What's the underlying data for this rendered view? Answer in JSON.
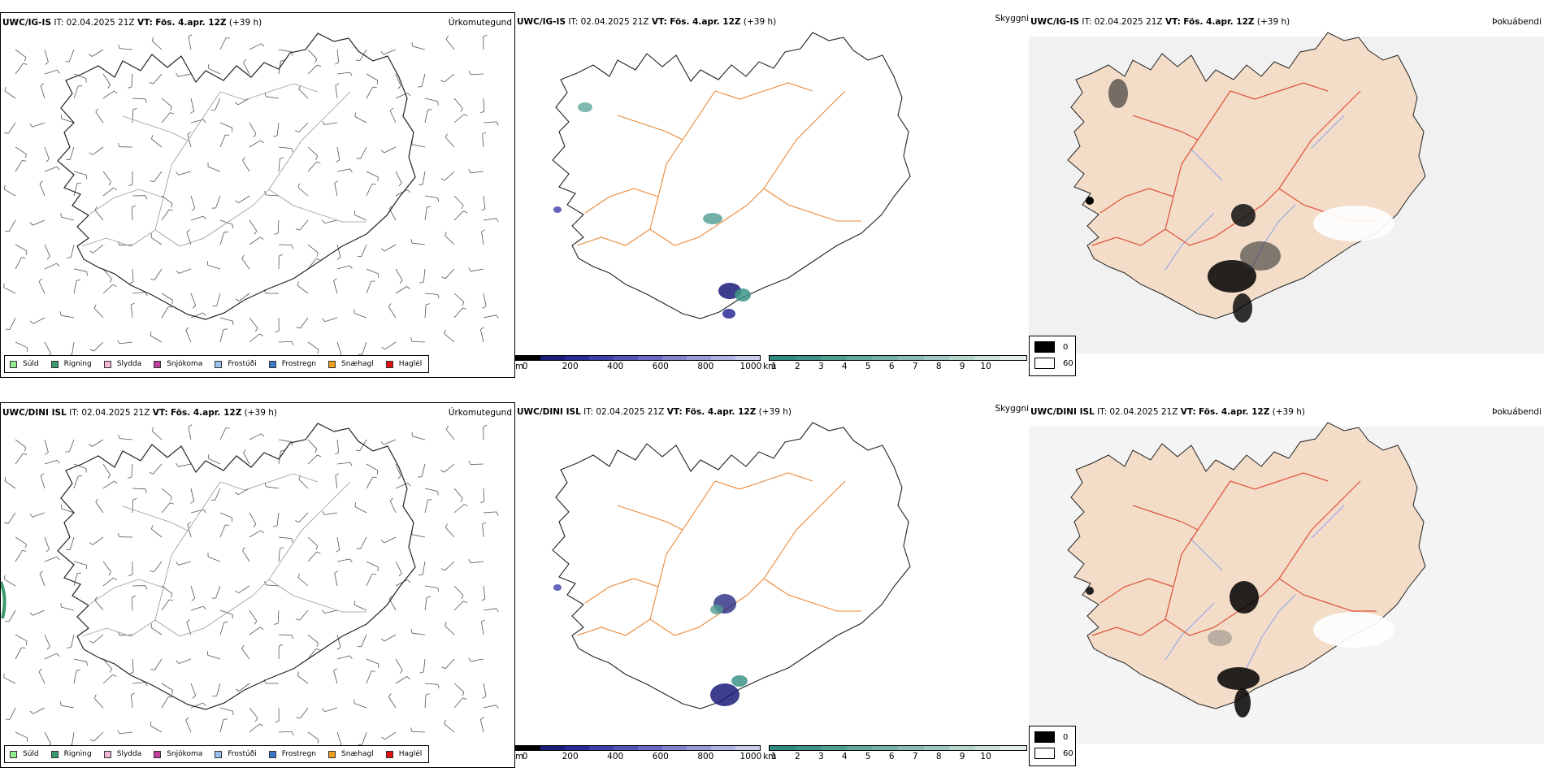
{
  "rows": [
    {
      "model": "UWC/IG-IS",
      "it_label": "IT:",
      "it_value": "02.04.2025 21Z",
      "vt_label": "VT:",
      "vt_value": "Fös. 4.apr. 12Z",
      "lead": "(+39 h)"
    },
    {
      "model": "UWC/DINI ISL",
      "it_label": "IT:",
      "it_value": "02.04.2025 21Z",
      "vt_label": "VT:",
      "vt_value": "Fös. 4.apr. 12Z",
      "lead": "(+39 h)"
    }
  ],
  "panel_names": {
    "precip": "Úrkomutegund",
    "visibility": "Skyggni",
    "fog": "Þokuábendi"
  },
  "precip_legend": [
    {
      "label": "Súld",
      "color": "#90ee90"
    },
    {
      "label": "Rigning",
      "color": "#3c9a6e"
    },
    {
      "label": "Slydda",
      "color": "#f4b6d6"
    },
    {
      "label": "Snjókoma",
      "color": "#c0409c"
    },
    {
      "label": "Frostúði",
      "color": "#98c0ec"
    },
    {
      "label": "Frostregn",
      "color": "#3c78c8"
    },
    {
      "label": "Snæhagl",
      "color": "#f0a020"
    },
    {
      "label": "Haglél",
      "color": "#e01010"
    }
  ],
  "height_bar": {
    "unit": "m",
    "ticks": [
      "0",
      "200",
      "400",
      "600",
      "800",
      "1000"
    ],
    "colors": [
      "#000000",
      "#1c1c7a",
      "#2a2a96",
      "#3e3ea8",
      "#5454b6",
      "#6a6ac2",
      "#8282cc",
      "#9a9ad6",
      "#b2b2e0",
      "#cacaea"
    ]
  },
  "km_bar": {
    "unit": "km",
    "ticks": [
      "1",
      "2",
      "3",
      "4",
      "5",
      "6",
      "7",
      "8",
      "9",
      "10"
    ],
    "colors": [
      "#2e8a7e",
      "#3e9488",
      "#509e92",
      "#62a89c",
      "#76b2a8",
      "#8abcb4",
      "#9ec8c0",
      "#b4d4ce",
      "#cae0dc",
      "#e0eeec"
    ]
  },
  "fog_legend": {
    "items": [
      {
        "value": "0",
        "color": "#000000"
      },
      {
        "value": "60",
        "color": "#ffffff"
      }
    ]
  },
  "icons": {
    "wind": "wind-barb-icon",
    "coast": "coastline"
  }
}
